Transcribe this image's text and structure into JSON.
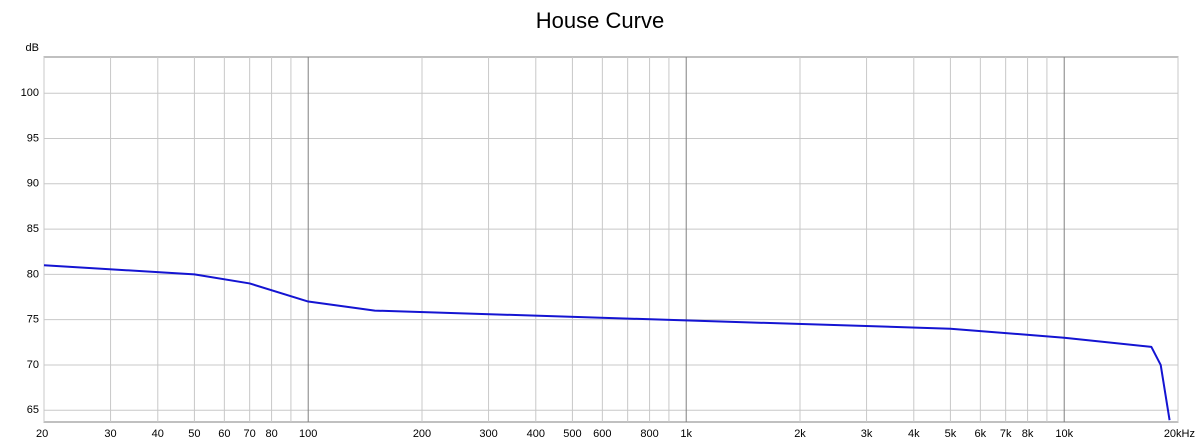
{
  "chart_data": {
    "type": "line",
    "title": "House Curve",
    "y_label": "dB",
    "x_scale": "log",
    "grid": true,
    "xlim": [
      20,
      20000
    ],
    "ylim": [
      63.7,
      104
    ],
    "xticks": [
      20,
      30,
      40,
      50,
      60,
      70,
      80,
      100,
      200,
      300,
      400,
      500,
      600,
      800,
      {
        "value": 1000,
        "label": "1k"
      },
      {
        "value": 2000,
        "label": "2k"
      },
      {
        "value": 3000,
        "label": "3k"
      },
      {
        "value": 4000,
        "label": "4k"
      },
      {
        "value": 5000,
        "label": "5k"
      },
      {
        "value": 6000,
        "label": "6k"
      },
      {
        "value": 7000,
        "label": "7k"
      },
      {
        "value": 8000,
        "label": "8k"
      },
      {
        "value": 10000,
        "label": "10k"
      },
      {
        "value": 20000,
        "label": "20kHz"
      }
    ],
    "minor_xticks": [
      90,
      700,
      900,
      9000
    ],
    "yticks": [
      65,
      70,
      75,
      80,
      85,
      90,
      95,
      100
    ],
    "series": [
      {
        "name": "House curve",
        "color": "#1414d2",
        "x": [
          20,
          50,
          70,
          100,
          150,
          5000,
          10000,
          17000,
          18000,
          19000
        ],
        "values": [
          81,
          80,
          79,
          77,
          76,
          74,
          73,
          72,
          70,
          63.9
        ]
      }
    ]
  }
}
